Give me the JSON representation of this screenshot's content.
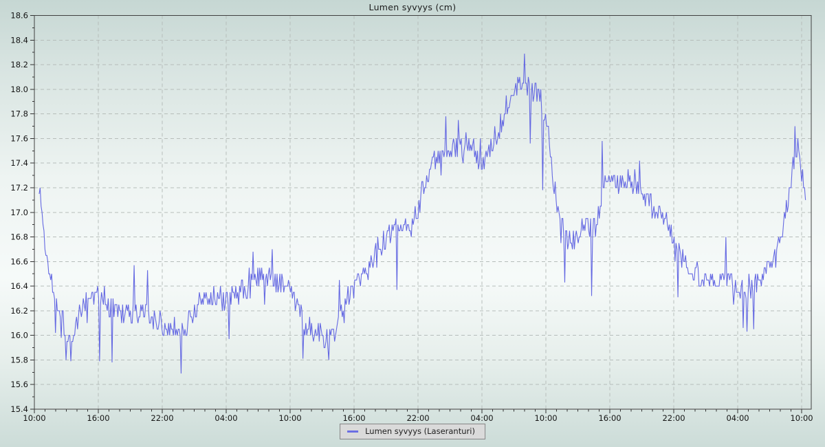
{
  "chart": {
    "title": "Lumen syvyys (cm)",
    "legend_label": "Lumen syvyys (Laseranturi)"
  },
  "chart_data": {
    "type": "line",
    "title": "Lumen syvyys (cm)",
    "xlabel": "",
    "ylabel": "",
    "ylim": [
      15.4,
      18.6
    ],
    "y_tick_step": 0.2,
    "y_minor_tick_step": 0.1,
    "y_tick_labels": [
      "15.4",
      "15.6",
      "15.8",
      "16.0",
      "16.2",
      "16.4",
      "16.6",
      "16.8",
      "17.0",
      "17.2",
      "17.4",
      "17.6",
      "17.8",
      "18.0",
      "18.2",
      "18.4",
      "18.6"
    ],
    "x_tick_labels": [
      "10:00",
      "16:00",
      "22:00",
      "04:00",
      "10:00",
      "16:00",
      "22:00",
      "04:00",
      "10:00",
      "16:00",
      "22:00",
      "04:00",
      "10:00"
    ],
    "x_tick_interval_hours": 6,
    "x_minor_tick_hours": 1,
    "x_hours_total": 72.9,
    "t_start": 0.45,
    "t_end": 72.4,
    "grid": "dashed",
    "legend_position": "bottom-center",
    "series": [
      {
        "name": "Lumen syvyys (Laseranturi)",
        "color": "#6468e2",
        "baseline": [
          [
            0.45,
            17.18,
            0.04
          ],
          [
            0.7,
            17.02,
            0.06
          ],
          [
            1.0,
            16.72,
            0.08
          ],
          [
            1.3,
            16.55,
            0.08
          ],
          [
            1.7,
            16.42,
            0.09
          ],
          [
            2.2,
            16.3,
            0.1
          ],
          [
            2.8,
            16.08,
            0.1
          ],
          [
            3.3,
            15.97,
            0.1
          ],
          [
            3.8,
            16.0,
            0.1
          ],
          [
            4.4,
            16.2,
            0.1
          ],
          [
            5.0,
            16.3,
            0.1
          ],
          [
            6.0,
            16.33,
            0.1
          ],
          [
            6.5,
            16.3,
            0.12
          ],
          [
            7.2,
            16.22,
            0.12
          ],
          [
            8.0,
            16.18,
            0.1
          ],
          [
            9.0,
            16.15,
            0.1
          ],
          [
            10.0,
            16.17,
            0.1
          ],
          [
            11.0,
            16.13,
            0.1
          ],
          [
            12.0,
            16.1,
            0.1
          ],
          [
            13.0,
            16.07,
            0.1
          ],
          [
            13.8,
            16.05,
            0.1
          ],
          [
            14.5,
            16.12,
            0.1
          ],
          [
            15.3,
            16.25,
            0.09
          ],
          [
            16.0,
            16.3,
            0.09
          ],
          [
            17.0,
            16.3,
            0.09
          ],
          [
            18.0,
            16.28,
            0.09
          ],
          [
            19.0,
            16.33,
            0.1
          ],
          [
            20.0,
            16.4,
            0.1
          ],
          [
            21.0,
            16.45,
            0.1
          ],
          [
            22.0,
            16.43,
            0.1
          ],
          [
            23.0,
            16.45,
            0.1
          ],
          [
            23.8,
            16.4,
            0.09
          ],
          [
            24.5,
            16.25,
            0.1
          ],
          [
            25.3,
            16.1,
            0.1
          ],
          [
            26.2,
            16.05,
            0.1
          ],
          [
            27.0,
            16.0,
            0.1
          ],
          [
            27.7,
            15.95,
            0.08
          ],
          [
            28.3,
            16.05,
            0.09
          ],
          [
            29.0,
            16.25,
            0.09
          ],
          [
            29.8,
            16.35,
            0.09
          ],
          [
            30.5,
            16.45,
            0.1
          ],
          [
            31.2,
            16.52,
            0.1
          ],
          [
            32.0,
            16.65,
            0.1
          ],
          [
            33.0,
            16.78,
            0.1
          ],
          [
            34.0,
            16.85,
            0.09
          ],
          [
            35.0,
            16.9,
            0.09
          ],
          [
            35.8,
            17.0,
            0.09
          ],
          [
            36.5,
            17.18,
            0.1
          ],
          [
            37.2,
            17.35,
            0.1
          ],
          [
            38.0,
            17.45,
            0.1
          ],
          [
            39.0,
            17.5,
            0.1
          ],
          [
            40.0,
            17.5,
            0.1
          ],
          [
            40.8,
            17.55,
            0.09
          ],
          [
            41.5,
            17.45,
            0.09
          ],
          [
            42.2,
            17.4,
            0.09
          ],
          [
            43.0,
            17.55,
            0.1
          ],
          [
            43.8,
            17.75,
            0.1
          ],
          [
            44.5,
            17.95,
            0.09
          ],
          [
            45.2,
            18.02,
            0.09
          ],
          [
            46.0,
            18.08,
            0.09
          ],
          [
            46.7,
            18.0,
            0.08
          ],
          [
            47.4,
            17.95,
            0.08
          ],
          [
            47.9,
            17.8,
            0.09
          ],
          [
            48.4,
            17.5,
            0.12
          ],
          [
            48.9,
            17.1,
            0.12
          ],
          [
            49.4,
            16.9,
            0.13
          ],
          [
            50.0,
            16.85,
            0.14
          ],
          [
            51.0,
            16.8,
            0.14
          ],
          [
            52.0,
            16.85,
            0.13
          ],
          [
            52.8,
            16.95,
            0.12
          ],
          [
            53.4,
            17.2,
            0.12
          ],
          [
            54.0,
            17.25,
            0.09
          ],
          [
            55.0,
            17.25,
            0.09
          ],
          [
            56.0,
            17.2,
            0.08
          ],
          [
            57.0,
            17.15,
            0.08
          ],
          [
            57.8,
            17.1,
            0.08
          ],
          [
            58.6,
            17.0,
            0.09
          ],
          [
            59.4,
            16.9,
            0.09
          ],
          [
            60.1,
            16.75,
            0.09
          ],
          [
            60.8,
            16.62,
            0.09
          ],
          [
            61.5,
            16.55,
            0.09
          ],
          [
            62.2,
            16.5,
            0.09
          ],
          [
            63.0,
            16.48,
            0.08
          ],
          [
            64.0,
            16.45,
            0.08
          ],
          [
            65.0,
            16.48,
            0.08
          ],
          [
            66.0,
            16.42,
            0.1
          ],
          [
            66.6,
            16.35,
            0.12
          ],
          [
            67.2,
            16.4,
            0.1
          ],
          [
            68.0,
            16.48,
            0.08
          ],
          [
            69.0,
            16.55,
            0.09
          ],
          [
            69.6,
            16.68,
            0.09
          ],
          [
            70.2,
            16.88,
            0.09
          ],
          [
            70.8,
            17.12,
            0.09
          ],
          [
            71.2,
            17.4,
            0.09
          ],
          [
            71.5,
            17.52,
            0.08
          ],
          [
            71.8,
            17.45,
            0.08
          ],
          [
            72.1,
            17.3,
            0.06
          ],
          [
            72.4,
            17.12,
            0.04
          ]
        ],
        "spikes": [
          [
            0.5,
            17.2
          ],
          [
            2.0,
            16.02
          ],
          [
            2.5,
            15.98
          ],
          [
            3.0,
            15.8
          ],
          [
            3.4,
            15.79
          ],
          [
            6.1,
            15.79
          ],
          [
            7.3,
            15.78
          ],
          [
            9.4,
            16.57
          ],
          [
            10.6,
            16.53
          ],
          [
            13.8,
            15.69
          ],
          [
            18.3,
            15.97
          ],
          [
            20.5,
            16.68
          ],
          [
            22.3,
            16.7
          ],
          [
            25.2,
            15.81
          ],
          [
            27.6,
            15.8
          ],
          [
            28.6,
            16.45
          ],
          [
            34.0,
            16.37
          ],
          [
            38.6,
            17.78
          ],
          [
            39.8,
            17.75
          ],
          [
            46.0,
            18.29
          ],
          [
            46.5,
            17.56
          ],
          [
            47.7,
            17.18
          ],
          [
            49.8,
            16.43
          ],
          [
            52.3,
            16.32
          ],
          [
            53.3,
            17.58
          ],
          [
            56.8,
            17.42
          ],
          [
            60.4,
            16.31
          ],
          [
            64.9,
            16.8
          ],
          [
            66.5,
            16.06
          ],
          [
            66.9,
            16.03
          ],
          [
            67.5,
            16.05
          ],
          [
            71.4,
            17.7
          ]
        ],
        "noise": {
          "seed": 1337,
          "quantize": 0.05,
          "sample_step_hours": 0.09,
          "spike_chance": 0.05,
          "spike_scale": 2.0
        }
      }
    ],
    "colors": {
      "series": "#6468e2",
      "grid": "#b6bdba",
      "frame": "#404040",
      "tick": "#303030",
      "text": "#141414",
      "legend_bg": "#dadada",
      "legend_border": "#858585",
      "bg_top": "#c6d7d3",
      "bg_mid": "#f6faf9",
      "bg_bottom": "#ccdcd8"
    }
  }
}
